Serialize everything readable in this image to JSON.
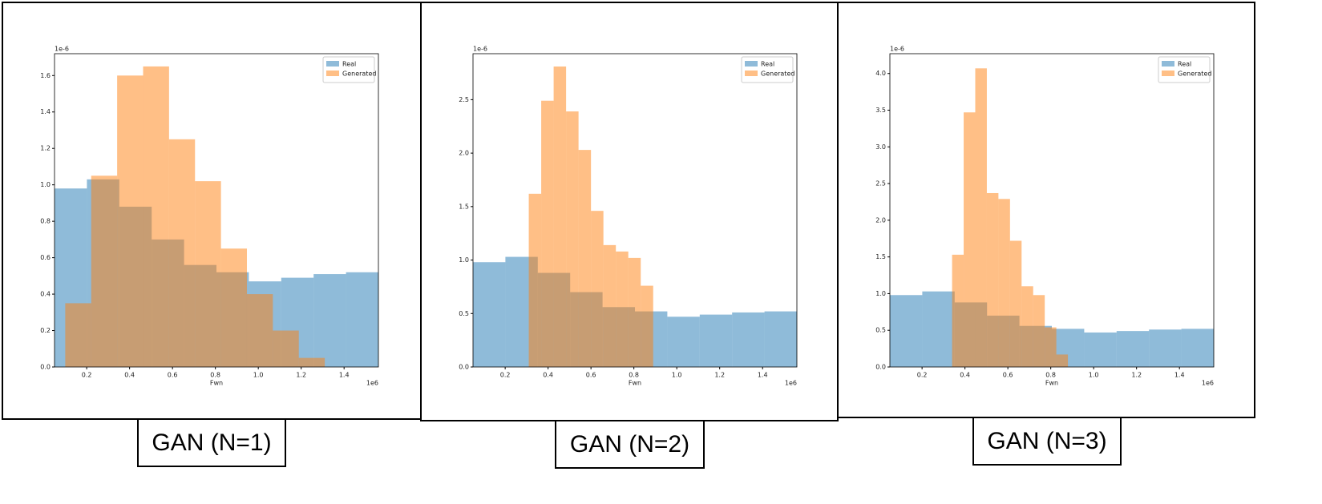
{
  "chart_data": [
    {
      "type": "histogram",
      "caption": "GAN (N=1)",
      "xlabel": "Fwn",
      "y_offset_label": "1e-6",
      "x_offset_label": "1e6",
      "legend": "upper right",
      "opacity": 0.5,
      "xlim": [
        0.05,
        1.56
      ],
      "ylim": [
        0,
        1.72
      ],
      "xticks": [
        0.2,
        0.4,
        0.6,
        0.8,
        {
          "value": 1,
          "label": "1.0"
        },
        1.2,
        1.4
      ],
      "yticks": [
        {
          "value": 0,
          "label": "0.0"
        },
        0.2,
        0.4,
        0.6,
        0.8,
        {
          "value": 1,
          "label": "1.0"
        },
        1.2,
        1.4,
        1.6
      ],
      "series": [
        {
          "name": "Real",
          "color": "#1f77b4",
          "bins": [
            0.05,
            0.201,
            0.352,
            0.503,
            0.654,
            0.805,
            0.956,
            1.107,
            1.258,
            1.409,
            1.56
          ],
          "values": [
            0.98,
            1.03,
            0.88,
            0.7,
            0.56,
            0.52,
            0.47,
            0.49,
            0.51,
            0.52
          ]
        },
        {
          "name": "Generated",
          "color": "#ff7f0e",
          "bins": [
            0.1,
            0.221,
            0.342,
            0.463,
            0.584,
            0.705,
            0.826,
            0.947,
            1.068,
            1.189,
            1.31
          ],
          "values": [
            0.35,
            1.05,
            1.6,
            1.65,
            1.25,
            1.02,
            0.65,
            0.4,
            0.2,
            0.05
          ]
        }
      ]
    },
    {
      "type": "histogram",
      "caption": "GAN (N=2)",
      "xlabel": "Fwn",
      "y_offset_label": "1e-6",
      "x_offset_label": "1e6",
      "legend": "upper right",
      "opacity": 0.5,
      "xlim": [
        0.05,
        1.56
      ],
      "ylim": [
        0,
        2.93
      ],
      "xticks": [
        0.2,
        0.4,
        0.6,
        0.8,
        {
          "value": 1,
          "label": "1.0"
        },
        1.2,
        1.4
      ],
      "yticks": [
        {
          "value": 0,
          "label": "0.0"
        },
        0.5,
        {
          "value": 1,
          "label": "1.0"
        },
        1.5,
        {
          "value": 2,
          "label": "2.0"
        },
        2.5
      ],
      "series": [
        {
          "name": "Real",
          "color": "#1f77b4",
          "bins": [
            0.05,
            0.201,
            0.352,
            0.503,
            0.654,
            0.805,
            0.956,
            1.107,
            1.258,
            1.409,
            1.56
          ],
          "values": [
            0.98,
            1.03,
            0.88,
            0.7,
            0.56,
            0.52,
            0.47,
            0.49,
            0.51,
            0.52
          ]
        },
        {
          "name": "Generated",
          "color": "#ff7f0e",
          "bins": [
            0.31,
            0.368,
            0.426,
            0.484,
            0.542,
            0.6,
            0.658,
            0.716,
            0.774,
            0.832,
            0.89
          ],
          "values": [
            1.62,
            2.49,
            2.81,
            2.39,
            2.03,
            1.46,
            1.14,
            1.08,
            1.02,
            0.76
          ]
        }
      ]
    },
    {
      "type": "histogram",
      "caption": "GAN (N=3)",
      "xlabel": "Fwn",
      "y_offset_label": "1e-6",
      "x_offset_label": "1e6",
      "legend": "upper right",
      "opacity": 0.5,
      "xlim": [
        0.05,
        1.56
      ],
      "ylim": [
        0,
        4.27
      ],
      "xticks": [
        0.2,
        0.4,
        0.6,
        0.8,
        {
          "value": 1,
          "label": "1.0"
        },
        1.2,
        1.4
      ],
      "yticks": [
        {
          "value": 0,
          "label": "0.0"
        },
        0.5,
        {
          "value": 1,
          "label": "1.0"
        },
        1.5,
        {
          "value": 2,
          "label": "2.0"
        },
        2.5,
        {
          "value": 3,
          "label": "3.0"
        },
        3.5,
        {
          "value": 4,
          "label": "4.0"
        }
      ],
      "series": [
        {
          "name": "Real",
          "color": "#1f77b4",
          "bins": [
            0.05,
            0.201,
            0.352,
            0.503,
            0.654,
            0.805,
            0.956,
            1.107,
            1.258,
            1.409,
            1.56
          ],
          "values": [
            0.98,
            1.03,
            0.88,
            0.7,
            0.56,
            0.52,
            0.47,
            0.49,
            0.51,
            0.52
          ]
        },
        {
          "name": "Generated",
          "color": "#ff7f0e",
          "bins": [
            0.34,
            0.394,
            0.448,
            0.502,
            0.556,
            0.61,
            0.664,
            0.718,
            0.772,
            0.826,
            0.88
          ],
          "values": [
            1.53,
            3.47,
            4.07,
            2.37,
            2.29,
            1.72,
            1.1,
            0.98,
            0.54,
            0.17
          ]
        }
      ]
    }
  ]
}
